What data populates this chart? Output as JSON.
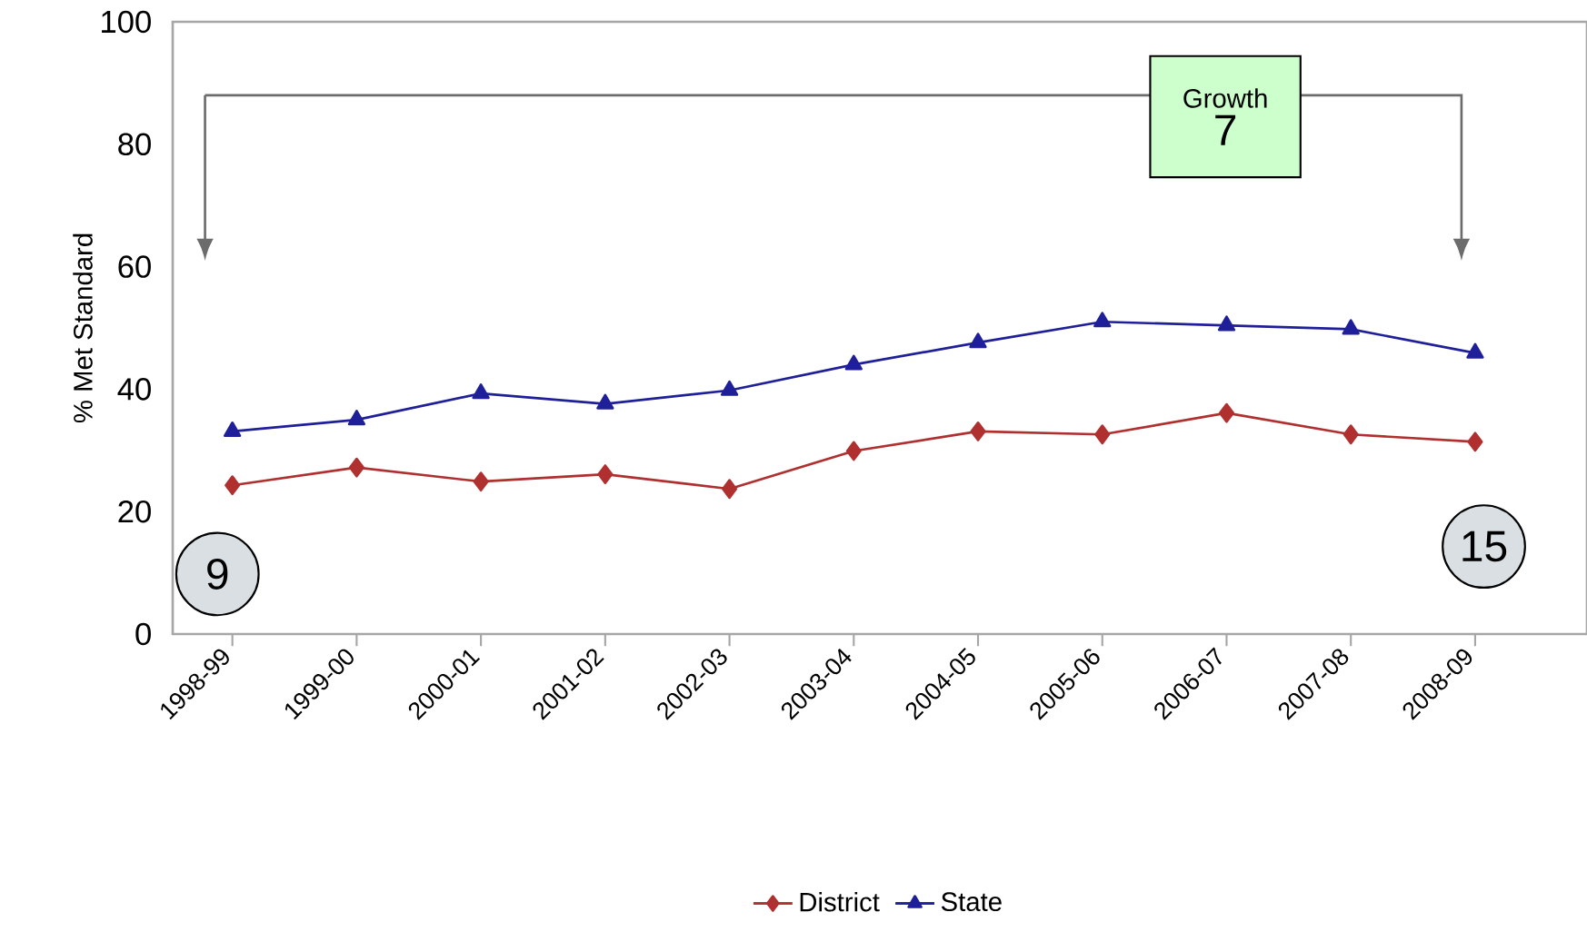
{
  "chart_data": {
    "type": "line",
    "ylabel": "% Met Standard",
    "categories": [
      "1998-99",
      "1999-00",
      "2000-01",
      "2001-02",
      "2002-03",
      "2003-04",
      "2004-05",
      "2005-06",
      "2006-07",
      "2007-08",
      "2008-09"
    ],
    "series": [
      {
        "name": "District",
        "color": "#b03030",
        "marker": "diamond",
        "values": [
          24.3,
          27.2,
          24.9,
          26.1,
          23.7,
          29.9,
          33.1,
          32.6,
          36.1,
          32.6,
          31.4
        ]
      },
      {
        "name": "State",
        "color": "#1f1f99",
        "marker": "triangle",
        "values": [
          33.1,
          35.0,
          39.3,
          37.6,
          39.8,
          44.0,
          47.6,
          51.0,
          50.4,
          49.8,
          45.9
        ]
      }
    ],
    "ylim": [
      0,
      100
    ],
    "yticks": [
      0,
      20,
      40,
      60,
      80,
      100
    ],
    "grid": false,
    "legend": "bottom",
    "annotations": [
      "Growth",
      "7",
      "9",
      "15"
    ]
  }
}
